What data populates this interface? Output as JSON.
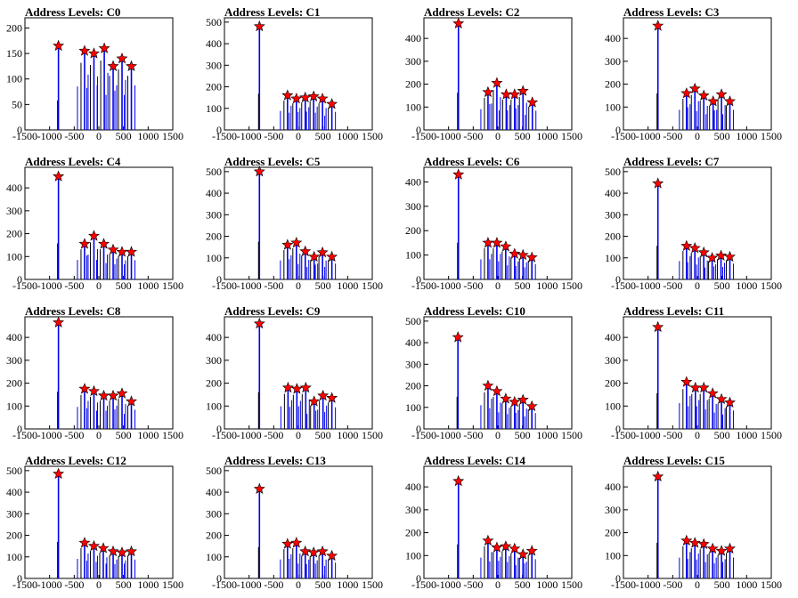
{
  "chart_data": [
    {
      "type": "bar",
      "title": "Address Levels: C0",
      "xlim": [
        -1500,
        1500
      ],
      "ylim": [
        0,
        220
      ],
      "yticks": [
        0,
        50,
        100,
        150,
        200
      ],
      "xticks": [
        -1500,
        -1000,
        -500,
        0,
        500,
        1000,
        1500
      ],
      "peaks": [
        {
          "x": -820,
          "y": 165
        },
        {
          "x": -290,
          "y": 155
        },
        {
          "x": -100,
          "y": 150
        },
        {
          "x": 110,
          "y": 160
        },
        {
          "x": 290,
          "y": 125
        },
        {
          "x": 470,
          "y": 140
        },
        {
          "x": 660,
          "y": 125
        }
      ]
    },
    {
      "type": "bar",
      "title": "Address Levels: C1",
      "xlim": [
        -1500,
        1500
      ],
      "ylim": [
        0,
        520
      ],
      "yticks": [
        0,
        100,
        200,
        300,
        400,
        500
      ],
      "xticks": [
        -1500,
        -1000,
        -500,
        0,
        500,
        1000,
        1500
      ],
      "peaks": [
        {
          "x": -790,
          "y": 480
        },
        {
          "x": -220,
          "y": 160
        },
        {
          "x": -40,
          "y": 145
        },
        {
          "x": 140,
          "y": 150
        },
        {
          "x": 310,
          "y": 155
        },
        {
          "x": 490,
          "y": 145
        },
        {
          "x": 680,
          "y": 120
        }
      ]
    },
    {
      "type": "bar",
      "title": "Address Levels: C2",
      "xlim": [
        -1500,
        1500
      ],
      "ylim": [
        0,
        490
      ],
      "yticks": [
        0,
        100,
        200,
        300,
        400
      ],
      "xticks": [
        -1500,
        -1000,
        -500,
        0,
        500,
        1000,
        1500
      ],
      "peaks": [
        {
          "x": -800,
          "y": 465
        },
        {
          "x": -200,
          "y": 165
        },
        {
          "x": -20,
          "y": 205
        },
        {
          "x": 170,
          "y": 155
        },
        {
          "x": 340,
          "y": 155
        },
        {
          "x": 510,
          "y": 170
        },
        {
          "x": 700,
          "y": 120
        }
      ]
    },
    {
      "type": "bar",
      "title": "Address Levels: C3",
      "xlim": [
        -1500,
        1500
      ],
      "ylim": [
        0,
        490
      ],
      "yticks": [
        0,
        100,
        200,
        300,
        400
      ],
      "xticks": [
        -1500,
        -1000,
        -500,
        0,
        500,
        1000,
        1500
      ],
      "peaks": [
        {
          "x": -800,
          "y": 455
        },
        {
          "x": -220,
          "y": 160
        },
        {
          "x": -50,
          "y": 180
        },
        {
          "x": 130,
          "y": 150
        },
        {
          "x": 320,
          "y": 125
        },
        {
          "x": 490,
          "y": 155
        },
        {
          "x": 660,
          "y": 125
        }
      ]
    },
    {
      "type": "bar",
      "title": "Address Levels: C4",
      "xlim": [
        -1500,
        1500
      ],
      "ylim": [
        0,
        490
      ],
      "yticks": [
        0,
        100,
        200,
        300,
        400
      ],
      "xticks": [
        -1500,
        -1000,
        -500,
        0,
        500,
        1000,
        1500
      ],
      "peaks": [
        {
          "x": -820,
          "y": 450
        },
        {
          "x": -290,
          "y": 155
        },
        {
          "x": -100,
          "y": 190
        },
        {
          "x": 100,
          "y": 155
        },
        {
          "x": 290,
          "y": 130
        },
        {
          "x": 470,
          "y": 120
        },
        {
          "x": 660,
          "y": 120
        }
      ]
    },
    {
      "type": "bar",
      "title": "Address Levels: C5",
      "xlim": [
        -1500,
        1500
      ],
      "ylim": [
        0,
        520
      ],
      "yticks": [
        0,
        100,
        200,
        300,
        400,
        500
      ],
      "xticks": [
        -1500,
        -1000,
        -500,
        0,
        500,
        1000,
        1500
      ],
      "peaks": [
        {
          "x": -790,
          "y": 500
        },
        {
          "x": -220,
          "y": 160
        },
        {
          "x": -40,
          "y": 170
        },
        {
          "x": 140,
          "y": 130
        },
        {
          "x": 320,
          "y": 105
        },
        {
          "x": 490,
          "y": 125
        },
        {
          "x": 680,
          "y": 105
        }
      ]
    },
    {
      "type": "bar",
      "title": "Address Levels: C6",
      "xlim": [
        -1500,
        1500
      ],
      "ylim": [
        0,
        460
      ],
      "yticks": [
        0,
        100,
        200,
        300,
        400
      ],
      "xticks": [
        -1500,
        -1000,
        -500,
        0,
        500,
        1000,
        1500
      ],
      "peaks": [
        {
          "x": -800,
          "y": 430
        },
        {
          "x": -200,
          "y": 150
        },
        {
          "x": -20,
          "y": 150
        },
        {
          "x": 160,
          "y": 135
        },
        {
          "x": 340,
          "y": 105
        },
        {
          "x": 510,
          "y": 100
        },
        {
          "x": 690,
          "y": 90
        }
      ]
    },
    {
      "type": "bar",
      "title": "Address Levels: C7",
      "xlim": [
        -1500,
        1500
      ],
      "ylim": [
        0,
        520
      ],
      "yticks": [
        0,
        100,
        200,
        300,
        400,
        500
      ],
      "xticks": [
        -1500,
        -1000,
        -500,
        0,
        500,
        1000,
        1500
      ],
      "peaks": [
        {
          "x": -800,
          "y": 445
        },
        {
          "x": -220,
          "y": 155
        },
        {
          "x": -50,
          "y": 145
        },
        {
          "x": 130,
          "y": 125
        },
        {
          "x": 300,
          "y": 100
        },
        {
          "x": 480,
          "y": 110
        },
        {
          "x": 660,
          "y": 105
        }
      ]
    },
    {
      "type": "bar",
      "title": "Address Levels: C8",
      "xlim": [
        -1500,
        1500
      ],
      "ylim": [
        0,
        490
      ],
      "yticks": [
        0,
        100,
        200,
        300,
        400
      ],
      "xticks": [
        -1500,
        -1000,
        -500,
        0,
        500,
        1000,
        1500
      ],
      "peaks": [
        {
          "x": -820,
          "y": 465
        },
        {
          "x": -290,
          "y": 175
        },
        {
          "x": -100,
          "y": 165
        },
        {
          "x": 100,
          "y": 145
        },
        {
          "x": 290,
          "y": 145
        },
        {
          "x": 470,
          "y": 155
        },
        {
          "x": 660,
          "y": 120
        }
      ]
    },
    {
      "type": "bar",
      "title": "Address Levels: C9",
      "xlim": [
        -1500,
        1500
      ],
      "ylim": [
        0,
        490
      ],
      "yticks": [
        0,
        100,
        200,
        300,
        400
      ],
      "xticks": [
        -1500,
        -1000,
        -500,
        0,
        500,
        1000,
        1500
      ],
      "peaks": [
        {
          "x": -790,
          "y": 460
        },
        {
          "x": -210,
          "y": 180
        },
        {
          "x": -30,
          "y": 175
        },
        {
          "x": 150,
          "y": 180
        },
        {
          "x": 320,
          "y": 120
        },
        {
          "x": 500,
          "y": 145
        },
        {
          "x": 680,
          "y": 135
        }
      ]
    },
    {
      "type": "bar",
      "title": "Address Levels: C10",
      "xlim": [
        -1500,
        1500
      ],
      "ylim": [
        0,
        520
      ],
      "yticks": [
        0,
        100,
        200,
        300,
        400,
        500
      ],
      "xticks": [
        -1500,
        -1000,
        -500,
        0,
        500,
        1000,
        1500
      ],
      "peaks": [
        {
          "x": -810,
          "y": 425
        },
        {
          "x": -200,
          "y": 200
        },
        {
          "x": -20,
          "y": 175
        },
        {
          "x": 160,
          "y": 140
        },
        {
          "x": 340,
          "y": 125
        },
        {
          "x": 510,
          "y": 135
        },
        {
          "x": 690,
          "y": 105
        }
      ]
    },
    {
      "type": "bar",
      "title": "Address Levels: C11",
      "xlim": [
        -1500,
        1500
      ],
      "ylim": [
        0,
        490
      ],
      "yticks": [
        0,
        100,
        200,
        300,
        400
      ],
      "xticks": [
        -1500,
        -1000,
        -500,
        0,
        500,
        1000,
        1500
      ],
      "peaks": [
        {
          "x": -800,
          "y": 445
        },
        {
          "x": -220,
          "y": 205
        },
        {
          "x": -40,
          "y": 180
        },
        {
          "x": 130,
          "y": 180
        },
        {
          "x": 310,
          "y": 155
        },
        {
          "x": 490,
          "y": 130
        },
        {
          "x": 660,
          "y": 115
        }
      ]
    },
    {
      "type": "bar",
      "title": "Address Levels: C12",
      "xlim": [
        -1500,
        1500
      ],
      "ylim": [
        0,
        520
      ],
      "yticks": [
        0,
        100,
        200,
        300,
        400,
        500
      ],
      "xticks": [
        -1500,
        -1000,
        -500,
        0,
        500,
        1000,
        1500
      ],
      "peaks": [
        {
          "x": -820,
          "y": 485
        },
        {
          "x": -290,
          "y": 165
        },
        {
          "x": -100,
          "y": 150
        },
        {
          "x": 90,
          "y": 140
        },
        {
          "x": 290,
          "y": 125
        },
        {
          "x": 470,
          "y": 120
        },
        {
          "x": 660,
          "y": 125
        }
      ]
    },
    {
      "type": "bar",
      "title": "Address Levels: C13",
      "xlim": [
        -1500,
        1500
      ],
      "ylim": [
        0,
        520
      ],
      "yticks": [
        0,
        100,
        200,
        300,
        400,
        500
      ],
      "xticks": [
        -1500,
        -1000,
        -500,
        0,
        500,
        1000,
        1500
      ],
      "peaks": [
        {
          "x": -790,
          "y": 415
        },
        {
          "x": -220,
          "y": 160
        },
        {
          "x": -40,
          "y": 165
        },
        {
          "x": 140,
          "y": 125
        },
        {
          "x": 310,
          "y": 120
        },
        {
          "x": 490,
          "y": 125
        },
        {
          "x": 680,
          "y": 105
        }
      ]
    },
    {
      "type": "bar",
      "title": "Address Levels: C14",
      "xlim": [
        -1500,
        1500
      ],
      "ylim": [
        0,
        490
      ],
      "yticks": [
        0,
        100,
        200,
        300,
        400
      ],
      "xticks": [
        -1500,
        -1000,
        -500,
        0,
        500,
        1000,
        1500
      ],
      "peaks": [
        {
          "x": -800,
          "y": 425
        },
        {
          "x": -200,
          "y": 165
        },
        {
          "x": -20,
          "y": 135
        },
        {
          "x": 160,
          "y": 140
        },
        {
          "x": 340,
          "y": 130
        },
        {
          "x": 510,
          "y": 105
        },
        {
          "x": 690,
          "y": 120
        }
      ]
    },
    {
      "type": "bar",
      "title": "Address Levels: C15",
      "xlim": [
        -1500,
        1500
      ],
      "ylim": [
        0,
        490
      ],
      "yticks": [
        0,
        100,
        200,
        300,
        400
      ],
      "xticks": [
        -1500,
        -1000,
        -500,
        0,
        500,
        1000,
        1500
      ],
      "peaks": [
        {
          "x": -800,
          "y": 445
        },
        {
          "x": -220,
          "y": 165
        },
        {
          "x": -50,
          "y": 155
        },
        {
          "x": 130,
          "y": 150
        },
        {
          "x": 310,
          "y": 130
        },
        {
          "x": 490,
          "y": 120
        },
        {
          "x": 660,
          "y": 130
        }
      ]
    }
  ]
}
